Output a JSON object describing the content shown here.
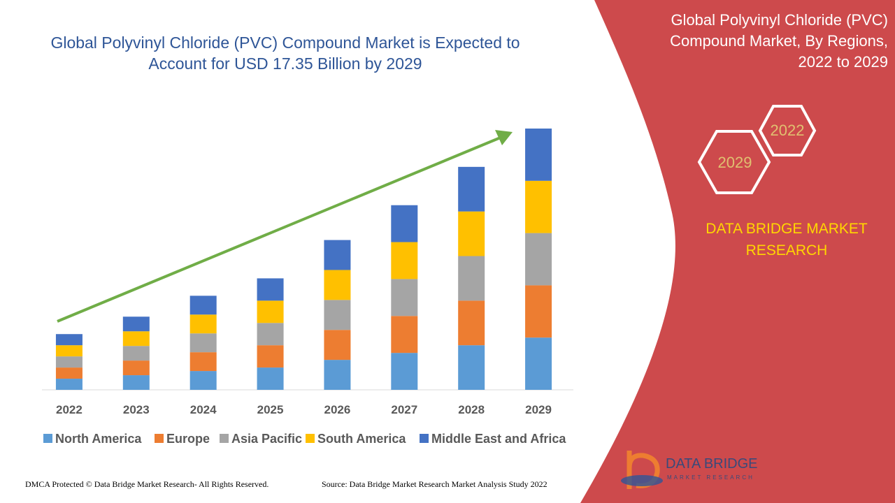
{
  "chart_data": {
    "type": "stacked_bar",
    "title": "Global Polyvinyl Chloride (PVC) Compound Market is Expected to Account for USD 17.35 Billion by 2029",
    "categories": [
      "2022",
      "2023",
      "2024",
      "2025",
      "2026",
      "2027",
      "2028",
      "2029"
    ],
    "series": [
      {
        "name": "North America",
        "color": "#5b9bd5",
        "values": [
          16,
          21,
          27,
          32,
          43,
          53,
          64,
          75
        ]
      },
      {
        "name": "Europe",
        "color": "#ed7d31",
        "values": [
          16,
          21,
          27,
          32,
          43,
          53,
          64,
          75
        ]
      },
      {
        "name": "Asia Pacific",
        "color": "#a5a5a5",
        "values": [
          16,
          21,
          27,
          32,
          43,
          53,
          64,
          75
        ]
      },
      {
        "name": "South America",
        "color": "#ffc000",
        "values": [
          16,
          21,
          27,
          32,
          43,
          53,
          64,
          75
        ]
      },
      {
        "name": "Middle East and Africa",
        "color": "#4472c4",
        "values": [
          16,
          21,
          27,
          32,
          43,
          53,
          64,
          75
        ]
      }
    ],
    "ylim": [
      0,
      375
    ],
    "legend": "bottom"
  },
  "panel": {
    "title": "Global Polyvinyl Chloride (PVC) Compound Market, By Regions, 2022 to 2029",
    "hex_years": [
      "2022",
      "2029"
    ],
    "brand": "DATA BRIDGE MARKET RESEARCH"
  },
  "logo": {
    "name": "DATA BRIDGE",
    "tagline": "MARKET RESEARCH"
  },
  "footer": {
    "left": "DMCA Protected © Data Bridge Market Research- All Rights Reserved.",
    "right": "Source: Data Bridge Market Research Market Analysis Study 2022"
  }
}
